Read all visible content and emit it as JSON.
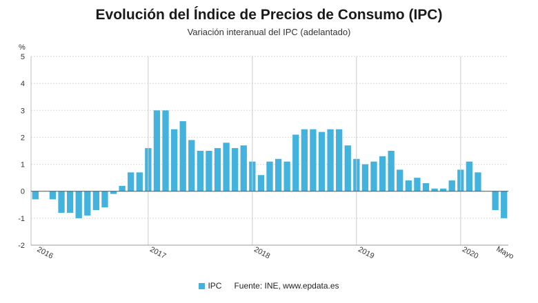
{
  "chart_data": {
    "type": "bar",
    "title": "Evolución del Índice de Precios de Consumo (IPC)",
    "subtitle": "Variación interanual del IPC (adelantado)",
    "ylabel": "%",
    "xlabel": "",
    "ylim": [
      -2,
      5
    ],
    "yticks": [
      5,
      4,
      3,
      2,
      1,
      0,
      -1,
      -2
    ],
    "grid": true,
    "legend_position": "bottom",
    "series": [
      {
        "name": "IPC",
        "color": "#43b3dd",
        "values": [
          -0.3,
          0,
          -0.3,
          -0.8,
          -0.8,
          -1.0,
          -0.9,
          -0.7,
          -0.6,
          -0.1,
          0.2,
          0.7,
          0.7,
          1.6,
          3.0,
          3.0,
          2.3,
          2.6,
          1.9,
          1.5,
          1.5,
          1.6,
          1.8,
          1.6,
          1.7,
          1.1,
          0.6,
          1.1,
          1.2,
          1.1,
          2.1,
          2.3,
          2.3,
          2.2,
          2.3,
          2.3,
          1.7,
          1.2,
          1.0,
          1.1,
          1.3,
          1.5,
          0.8,
          0.4,
          0.5,
          0.3,
          0.1,
          0.1,
          0.4,
          0.8,
          1.1,
          0.7,
          0,
          -0.7,
          -1.0
        ]
      }
    ],
    "x_labels": [
      {
        "text": "2016",
        "index": 1
      },
      {
        "text": "2017",
        "index": 14
      },
      {
        "text": "2018",
        "index": 26
      },
      {
        "text": "2019",
        "index": 38
      },
      {
        "text": "2020",
        "index": 50
      },
      {
        "text": "Mayo",
        "index": 54
      }
    ],
    "year_separators": [
      13.5,
      25.5,
      37.5,
      49.5
    ]
  },
  "legend": {
    "series_label": "IPC",
    "source": "Fuente: INE, www.epdata.es"
  }
}
